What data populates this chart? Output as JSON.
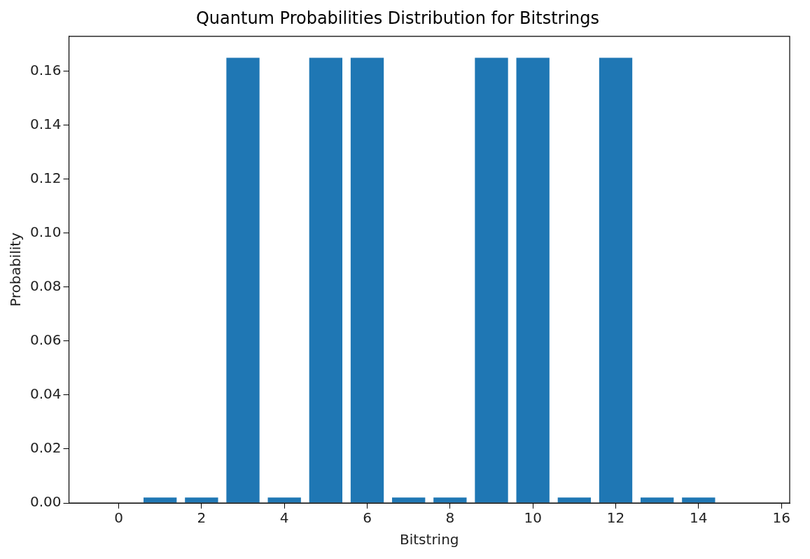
{
  "chart_data": {
    "type": "bar",
    "title": "Quantum Probabilities Distribution for Bitstrings",
    "xlabel": "Bitstring",
    "ylabel": "Probability",
    "x": [
      0,
      1,
      2,
      3,
      4,
      5,
      6,
      7,
      8,
      9,
      10,
      11,
      12,
      13,
      14,
      15
    ],
    "values": [
      0,
      0.002,
      0.002,
      0.165,
      0.002,
      0.165,
      0.165,
      0.002,
      0.002,
      0.165,
      0.165,
      0.002,
      0.165,
      0.002,
      0.002,
      0
    ],
    "color": "#1f77b4",
    "xlim": [
      -1.2,
      16.2
    ],
    "xticks": [
      0,
      2,
      4,
      6,
      8,
      10,
      12,
      14,
      16
    ],
    "ylim": [
      0,
      0.173
    ],
    "yticks": [
      {
        "value": 0,
        "label": "0.00"
      },
      {
        "value": 0.02,
        "label": "0.02"
      },
      {
        "value": 0.04,
        "label": "0.04"
      },
      {
        "value": 0.06,
        "label": "0.06"
      },
      {
        "value": 0.08,
        "label": "0.08"
      },
      {
        "value": 0.1,
        "label": "0.10"
      },
      {
        "value": 0.12,
        "label": "0.12"
      },
      {
        "value": 0.14,
        "label": "0.14"
      },
      {
        "value": 0.16,
        "label": "0.16"
      }
    ],
    "grid": false,
    "legend": false
  }
}
